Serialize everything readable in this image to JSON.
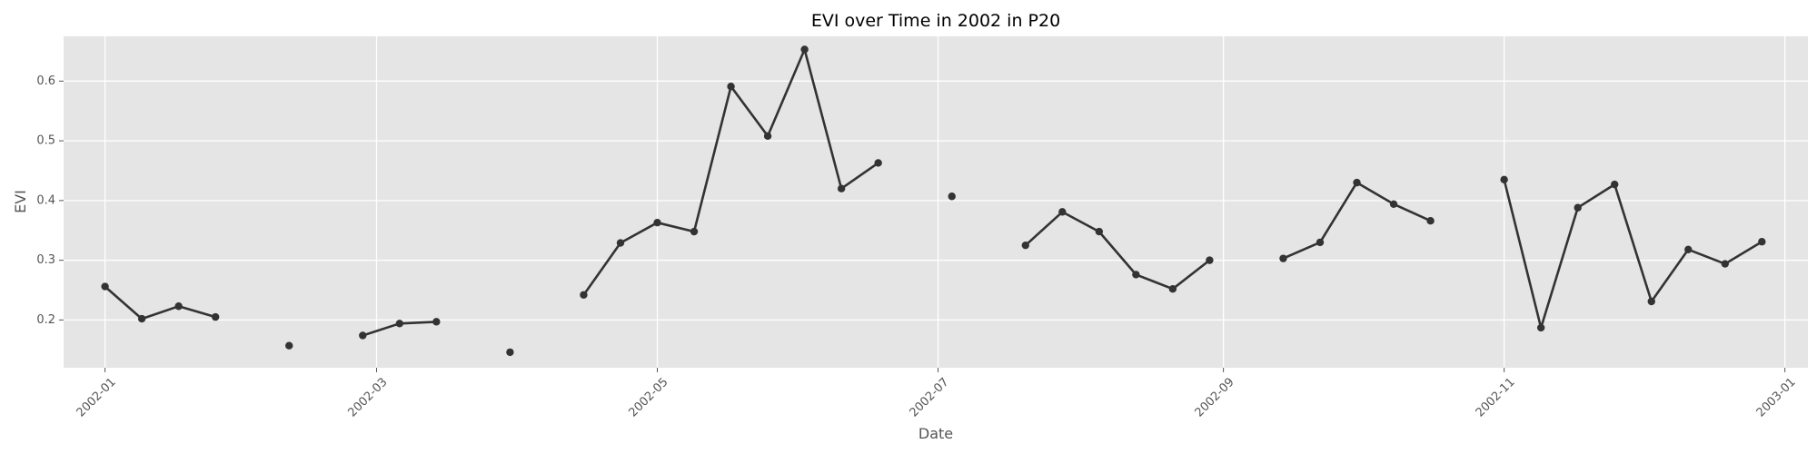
{
  "chart_data": {
    "type": "line",
    "title": "EVI over Time in 2002 in P20",
    "xlabel": "Date",
    "ylabel": "EVI",
    "x_ticks": [
      "2002-01",
      "2002-03",
      "2002-05",
      "2002-07",
      "2002-09",
      "2002-11",
      "2003-01"
    ],
    "y_ticks": [
      "0.2",
      "0.3",
      "0.4",
      "0.5",
      "0.6"
    ],
    "xlim": [
      "2001-12-23",
      "2003-01-06"
    ],
    "ylim": [
      0.12,
      0.675
    ],
    "grid": true,
    "colors": {
      "background": "#e5e5e5",
      "line": "#333333",
      "marker": "#333333"
    },
    "series": [
      {
        "segments": [
          {
            "dates": [
              "2002-01-01",
              "2002-01-09",
              "2002-01-17",
              "2002-01-25"
            ],
            "values": [
              0.256,
              0.202,
              0.223,
              0.205
            ]
          },
          {
            "dates": [
              "2002-02-10"
            ],
            "values": [
              0.157
            ]
          },
          {
            "dates": [
              "2002-02-26",
              "2002-03-06",
              "2002-03-14"
            ],
            "values": [
              0.174,
              0.194,
              0.197
            ]
          },
          {
            "dates": [
              "2002-03-30"
            ],
            "values": [
              0.146
            ]
          },
          {
            "dates": [
              "2002-04-15",
              "2002-04-23",
              "2002-05-01",
              "2002-05-09",
              "2002-05-17",
              "2002-05-25",
              "2002-06-02",
              "2002-06-10",
              "2002-06-18"
            ],
            "values": [
              0.242,
              0.329,
              0.363,
              0.348,
              0.591,
              0.508,
              0.653,
              0.42,
              0.463
            ]
          },
          {
            "dates": [
              "2002-07-04"
            ],
            "values": [
              0.407
            ]
          },
          {
            "dates": [
              "2002-07-20",
              "2002-07-28",
              "2002-08-05",
              "2002-08-13",
              "2002-08-21",
              "2002-08-29"
            ],
            "values": [
              0.325,
              0.381,
              0.348,
              0.276,
              0.252,
              0.3
            ]
          },
          {
            "dates": [
              "2002-09-14",
              "2002-09-22",
              "2002-09-30",
              "2002-10-08",
              "2002-10-16"
            ],
            "values": [
              0.303,
              0.33,
              0.43,
              0.394,
              0.366
            ]
          },
          {
            "dates": [
              "2002-11-01",
              "2002-11-09",
              "2002-11-17",
              "2002-11-25",
              "2002-12-03",
              "2002-12-11",
              "2002-12-19",
              "2002-12-27"
            ],
            "values": [
              0.435,
              0.187,
              0.388,
              0.427,
              0.231,
              0.318,
              0.294,
              0.331
            ]
          }
        ]
      }
    ]
  }
}
